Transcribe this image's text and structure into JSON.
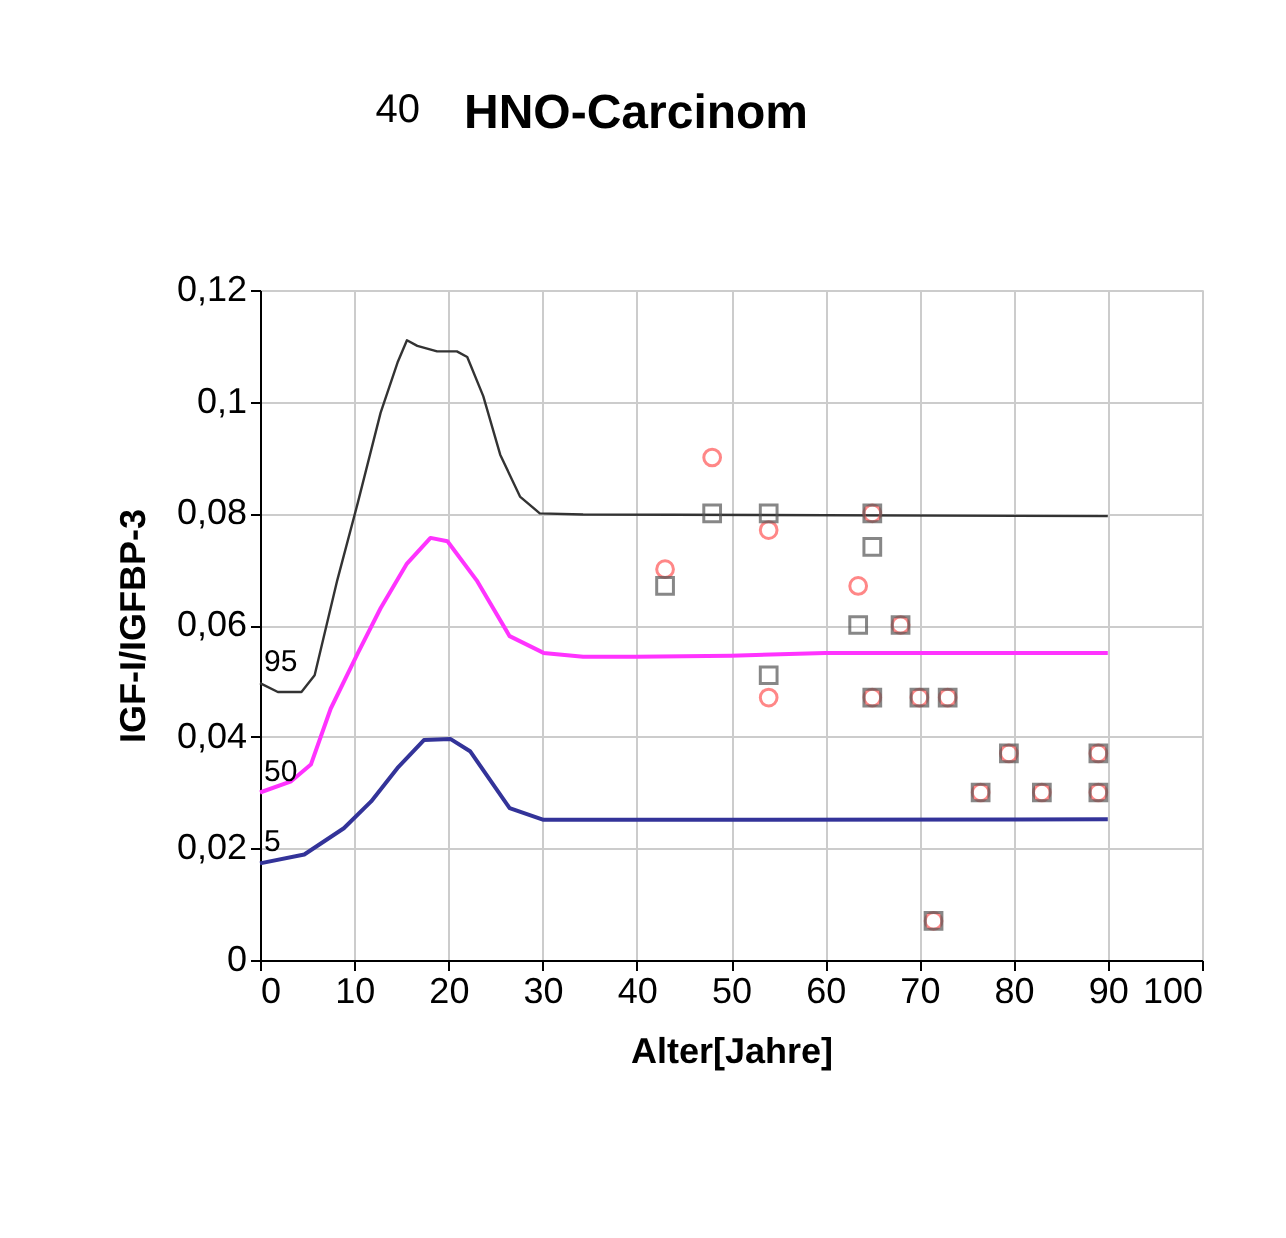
{
  "chart_data": {
    "type": "line",
    "title": "HNO-Carcinom",
    "xlabel": "Alter[Jahre]",
    "ylabel": "IGF-I/IGFBP-3",
    "annotations": [
      "40"
    ],
    "xlim": [
      0,
      100
    ],
    "xticks": [
      0,
      10,
      20,
      30,
      40,
      50,
      60,
      70,
      80,
      90,
      100
    ],
    "ylim": [
      0,
      0.12
    ],
    "yticks": [
      {
        "value": 0,
        "label": "0"
      },
      {
        "value": 0.02,
        "label": "0,02"
      },
      {
        "value": 0.04,
        "label": "0,04"
      },
      {
        "value": 0.06,
        "label": "0,06"
      },
      {
        "value": 0.08,
        "label": "0,08"
      },
      {
        "value": 0.1,
        "label": "0,1"
      },
      {
        "value": 0.12,
        "label": "0,12"
      }
    ],
    "grid": true,
    "series": [
      {
        "name": "95",
        "color": "#333333",
        "marker": "none",
        "x": [
          0,
          1.9,
          4.4,
          5.8,
          8.2,
          10.4,
          12.8,
          14.6,
          15.6,
          16.7,
          18.8,
          20.9,
          22,
          23.7,
          25.5,
          27.6,
          29.7,
          34.3,
          90
        ],
        "values": [
          0.0496,
          0.048,
          0.048,
          0.051,
          0.068,
          0.082,
          0.098,
          0.107,
          0.111,
          0.11,
          0.109,
          0.109,
          0.108,
          0.101,
          0.0905,
          0.083,
          0.08,
          0.0798,
          0.0795
        ]
      },
      {
        "name": "50",
        "color": "#ff33ff",
        "marker": "none",
        "x": [
          0,
          3.3,
          5.4,
          7.5,
          10.4,
          12.8,
          15.6,
          18.1,
          19.9,
          23,
          26.5,
          30.1,
          34.3,
          39.9,
          50,
          60,
          90
        ],
        "values": [
          0.03,
          0.032,
          0.035,
          0.045,
          0.055,
          0.063,
          0.071,
          0.0756,
          0.075,
          0.068,
          0.058,
          0.055,
          0.0543,
          0.0543,
          0.0545,
          0.055,
          0.055
        ]
      },
      {
        "name": "5",
        "color": "#333399",
        "marker": "none",
        "x": [
          0,
          4.7,
          8.9,
          11.8,
          14.6,
          17.4,
          20.2,
          22.3,
          26.5,
          30.1,
          40,
          90
        ],
        "values": [
          0.0173,
          0.0189,
          0.0236,
          0.0284,
          0.0344,
          0.0394,
          0.0396,
          0.0374,
          0.0272,
          0.0251,
          0.0251,
          0.0252
        ]
      },
      {
        "type": "scatter",
        "color": "#ff5555",
        "marker": "circle",
        "x": [
          43,
          48,
          54,
          54,
          63.5,
          65,
          65,
          68,
          70,
          73,
          76.5,
          79.5,
          83,
          89,
          89,
          71.5
        ],
        "values": [
          0.07,
          0.09,
          0.077,
          0.047,
          0.067,
          0.08,
          0.047,
          0.06,
          0.047,
          0.047,
          0.03,
          0.037,
          0.03,
          0.037,
          0.03,
          0.007
        ]
      },
      {
        "type": "scatter",
        "color": "#555555",
        "marker": "square",
        "x": [
          43,
          48,
          54,
          54,
          63.5,
          65,
          65,
          65,
          68,
          70,
          73,
          76.5,
          79.5,
          83,
          89,
          89,
          71.5
        ],
        "values": [
          0.067,
          0.08,
          0.08,
          0.051,
          0.06,
          0.08,
          0.074,
          0.047,
          0.06,
          0.047,
          0.047,
          0.03,
          0.037,
          0.03,
          0.037,
          0.03,
          0.007
        ]
      }
    ]
  }
}
